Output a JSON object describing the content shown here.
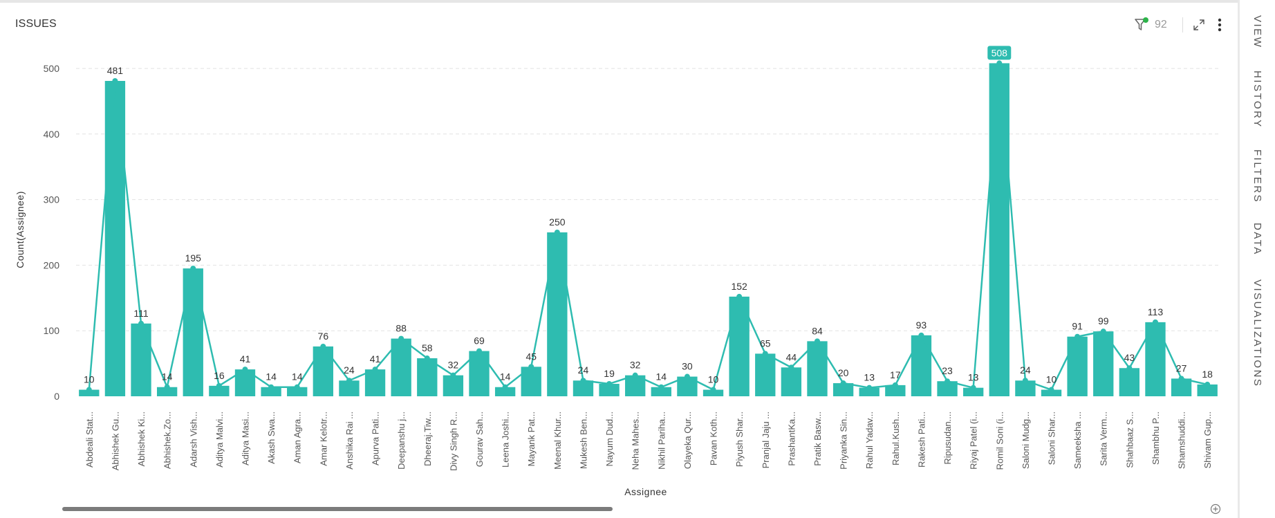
{
  "panel": {
    "title": "ISSUES",
    "filter_count": "92",
    "icons": [
      "filter-icon",
      "expand-icon",
      "more-options-icon",
      "zoom-icon"
    ]
  },
  "right_tabs": [
    "VIEW",
    "HISTORY",
    "FILTERS",
    "DATA",
    "VISUALIZATIONS"
  ],
  "colors": {
    "bar": "#2ebcb0",
    "line": "#2ebcb0",
    "highlight_label_bg": "#2ebcb0",
    "grid": "#e2e2e2",
    "filter_dot": "#2db34a"
  },
  "chart_data": {
    "type": "bar",
    "overlay": "line",
    "xlabel": "Assignee",
    "ylabel": "Count(Assignee)",
    "ylim": [
      0,
      550
    ],
    "yticks": [
      0,
      100,
      200,
      300,
      400,
      500
    ],
    "grid": true,
    "highlighted": "Romil Soni (i...",
    "categories": [
      "Abdeali Stat...",
      "Abhishek Gu...",
      "Abhishek Ki...",
      "Abhishek.Zo...",
      "Adarsh Vish...",
      "Aditya Malvi...",
      "Aditya Masi...",
      "Akash Swa...",
      "Aman Agra...",
      "Amar Kelotr...",
      "Anshika Rai ...",
      "Apurva Pati...",
      "Deepanshu j...",
      "Dheeraj.Tiw...",
      "Divy Singh R...",
      "Gourav Sah...",
      "Leena Joshi...",
      "Mayank Pat...",
      "Meenal Khur...",
      "Mukesh Ben...",
      "Nayum Dud...",
      "Neha Mahes...",
      "Nikhil Pariha...",
      "Olayeka Qur...",
      "Pavan Koth...",
      "Piyush Shar...",
      "Pranjal Jaju ...",
      "PrashantKa...",
      "Pratik Basw...",
      "Priyanka Sin...",
      "Rahul Yadav...",
      "Rahul.Kush...",
      "Rakesh Pati...",
      "Ripusudan....",
      "Riyaj Patel (i...",
      "Romil Soni (i...",
      "Saloni Mudg...",
      "Saloni Shar...",
      "Sameeksha ...",
      "Sarita Verm...",
      "Shahbaaz S...",
      "Shambhu P...",
      "Shamshuddi...",
      "Shivam Gup..."
    ],
    "values": [
      10,
      481,
      111,
      14,
      195,
      16,
      41,
      14,
      14,
      76,
      24,
      41,
      88,
      58,
      32,
      69,
      14,
      45,
      250,
      24,
      19,
      32,
      14,
      30,
      10,
      152,
      65,
      44,
      84,
      20,
      13,
      17,
      93,
      23,
      13,
      508,
      24,
      10,
      91,
      99,
      43,
      113,
      27,
      18
    ]
  }
}
